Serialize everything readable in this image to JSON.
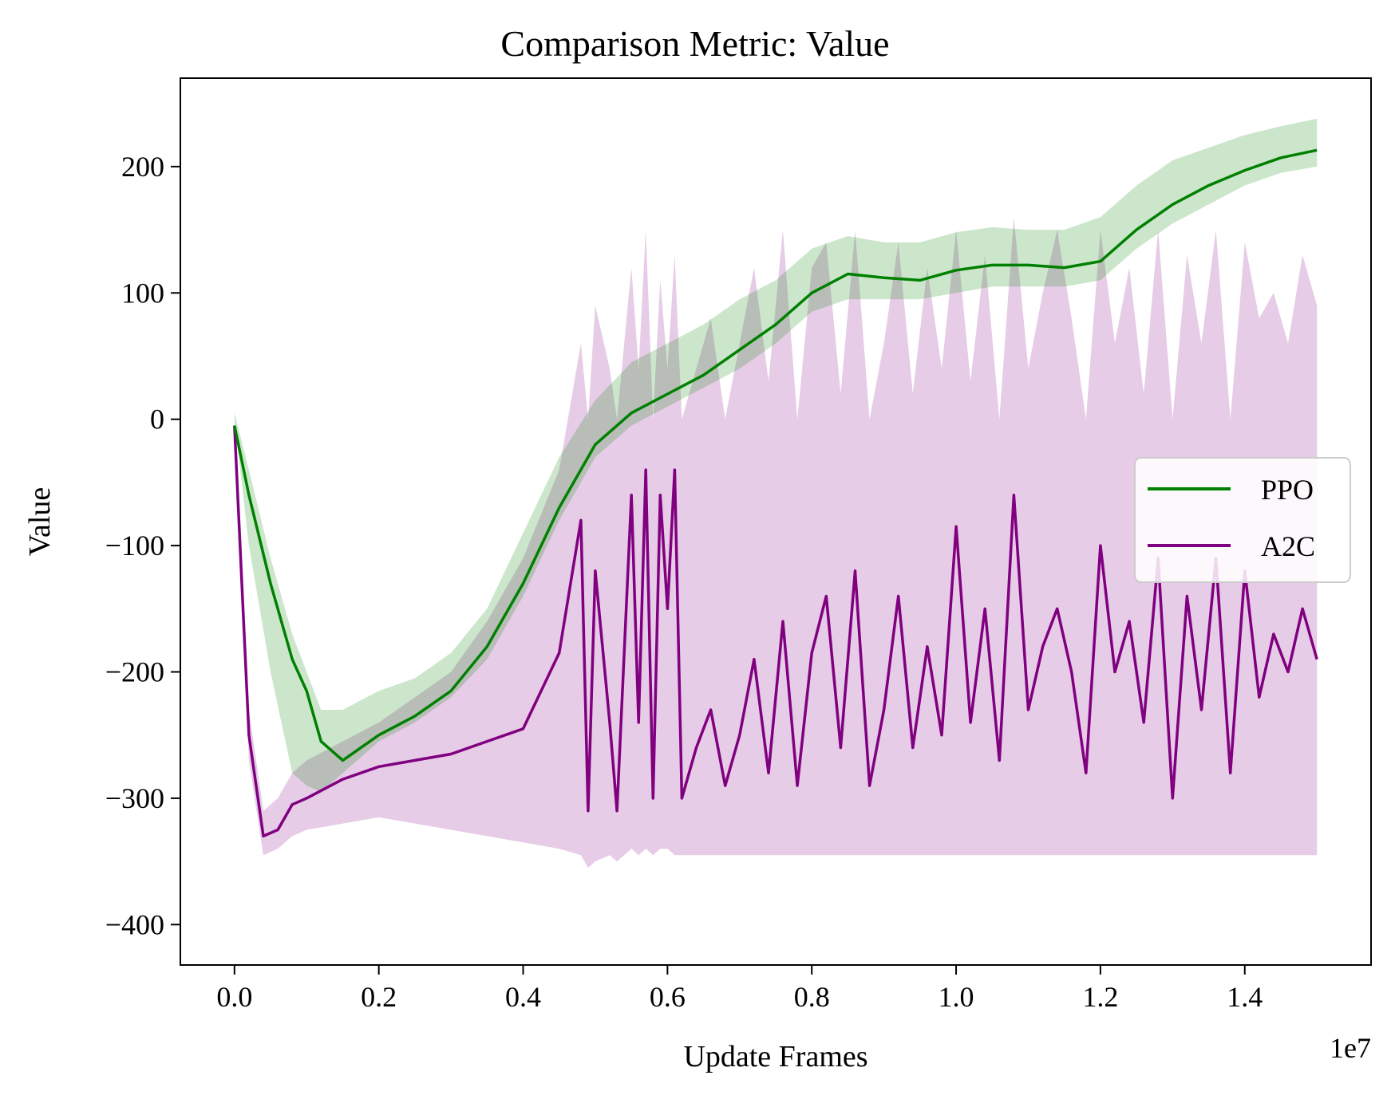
{
  "chart_data": {
    "type": "line",
    "title": "Comparison Metric: Value",
    "xlabel": "Update Frames",
    "ylabel": "Value",
    "x_offset_text": "1e7",
    "xlim": [
      -0.075,
      1.575
    ],
    "ylim": [
      -432,
      270
    ],
    "x_ticks": [
      0.0,
      0.2,
      0.4,
      0.6,
      0.8,
      1.0,
      1.2,
      1.4
    ],
    "x_tick_labels": [
      "0.0",
      "0.2",
      "0.4",
      "0.6",
      "0.8",
      "1.0",
      "1.2",
      "1.4"
    ],
    "y_ticks": [
      200,
      100,
      0,
      -100,
      -200,
      -300,
      -400
    ],
    "y_tick_labels": [
      "200",
      "100",
      "0",
      "−100",
      "−200",
      "−300",
      "−400"
    ],
    "grid": false,
    "legend_position": "center-right",
    "series": [
      {
        "name": "PPO",
        "color": "#008000",
        "band_color": "#008000",
        "band_opacity": 0.2,
        "x": [
          0.0,
          0.02,
          0.05,
          0.08,
          0.1,
          0.12,
          0.15,
          0.2,
          0.25,
          0.3,
          0.35,
          0.4,
          0.45,
          0.5,
          0.55,
          0.6,
          0.65,
          0.7,
          0.75,
          0.8,
          0.85,
          0.9,
          0.95,
          1.0,
          1.05,
          1.1,
          1.15,
          1.2,
          1.25,
          1.3,
          1.35,
          1.4,
          1.45,
          1.5
        ],
        "y": [
          -5,
          -60,
          -130,
          -190,
          -215,
          -255,
          -270,
          -250,
          -235,
          -215,
          -180,
          -130,
          -70,
          -20,
          5,
          20,
          35,
          55,
          75,
          100,
          115,
          112,
          110,
          118,
          122,
          122,
          120,
          125,
          150,
          170,
          185,
          197,
          207,
          213
        ],
        "band_low": [
          0,
          -100,
          -200,
          -280,
          -290,
          -295,
          -280,
          -255,
          -240,
          -220,
          -190,
          -140,
          -80,
          -30,
          -5,
          10,
          25,
          40,
          60,
          85,
          95,
          95,
          95,
          100,
          105,
          105,
          105,
          110,
          135,
          155,
          170,
          185,
          195,
          200
        ],
        "band_high": [
          5,
          -40,
          -110,
          -170,
          -200,
          -230,
          -230,
          -215,
          -205,
          -185,
          -150,
          -90,
          -30,
          15,
          45,
          60,
          75,
          95,
          110,
          135,
          145,
          140,
          140,
          148,
          152,
          150,
          150,
          160,
          185,
          205,
          215,
          225,
          232,
          238
        ]
      },
      {
        "name": "A2C",
        "color": "#800080",
        "band_color": "#800080",
        "band_opacity": 0.2,
        "x": [
          0.0,
          0.02,
          0.04,
          0.06,
          0.08,
          0.1,
          0.15,
          0.2,
          0.25,
          0.3,
          0.35,
          0.4,
          0.45,
          0.48,
          0.49,
          0.5,
          0.52,
          0.53,
          0.55,
          0.56,
          0.57,
          0.58,
          0.59,
          0.6,
          0.61,
          0.62,
          0.64,
          0.66,
          0.68,
          0.7,
          0.72,
          0.74,
          0.76,
          0.78,
          0.8,
          0.82,
          0.84,
          0.86,
          0.88,
          0.9,
          0.92,
          0.94,
          0.96,
          0.98,
          1.0,
          1.02,
          1.04,
          1.06,
          1.08,
          1.1,
          1.12,
          1.14,
          1.16,
          1.18,
          1.2,
          1.22,
          1.24,
          1.26,
          1.28,
          1.3,
          1.32,
          1.34,
          1.36,
          1.38,
          1.4,
          1.42,
          1.44,
          1.46,
          1.48,
          1.5
        ],
        "y": [
          -5,
          -250,
          -330,
          -325,
          -305,
          -300,
          -285,
          -275,
          -270,
          -265,
          -255,
          -245,
          -185,
          -80,
          -310,
          -120,
          -240,
          -310,
          -60,
          -240,
          -40,
          -300,
          -60,
          -150,
          -40,
          -300,
          -260,
          -230,
          -290,
          -250,
          -190,
          -280,
          -160,
          -290,
          -185,
          -140,
          -260,
          -120,
          -290,
          -230,
          -140,
          -260,
          -180,
          -250,
          -85,
          -240,
          -150,
          -270,
          -60,
          -230,
          -180,
          -150,
          -200,
          -280,
          -100,
          -200,
          -160,
          -240,
          -110,
          -300,
          -140,
          -230,
          -110,
          -280,
          -120,
          -220,
          -170,
          -200,
          -150,
          -190
        ],
        "band_low": [
          -5,
          -270,
          -345,
          -340,
          -330,
          -325,
          -320,
          -315,
          -320,
          -325,
          -330,
          -335,
          -340,
          -345,
          -355,
          -350,
          -345,
          -350,
          -340,
          -345,
          -340,
          -345,
          -340,
          -340,
          -345,
          -345,
          -345,
          -345,
          -345,
          -345,
          -345,
          -345,
          -345,
          -345,
          -345,
          -345,
          -345,
          -345,
          -345,
          -345,
          -345,
          -345,
          -345,
          -345,
          -345,
          -345,
          -345,
          -345,
          -345,
          -345,
          -345,
          -345,
          -345,
          -345,
          -345,
          -345,
          -345,
          -345,
          -345,
          -345,
          -345,
          -345,
          -345,
          -345,
          -345,
          -345,
          -345,
          -345,
          -345,
          -345
        ],
        "band_high": [
          0,
          -230,
          -310,
          -300,
          -280,
          -270,
          -255,
          -240,
          -220,
          -200,
          -160,
          -110,
          -40,
          60,
          0,
          90,
          40,
          0,
          120,
          40,
          150,
          0,
          110,
          40,
          130,
          0,
          40,
          80,
          0,
          60,
          120,
          30,
          150,
          0,
          120,
          140,
          20,
          150,
          0,
          60,
          140,
          20,
          120,
          40,
          150,
          30,
          130,
          0,
          160,
          40,
          100,
          150,
          80,
          0,
          150,
          60,
          120,
          20,
          150,
          0,
          130,
          60,
          150,
          0,
          140,
          80,
          100,
          60,
          130,
          90
        ]
      }
    ]
  }
}
